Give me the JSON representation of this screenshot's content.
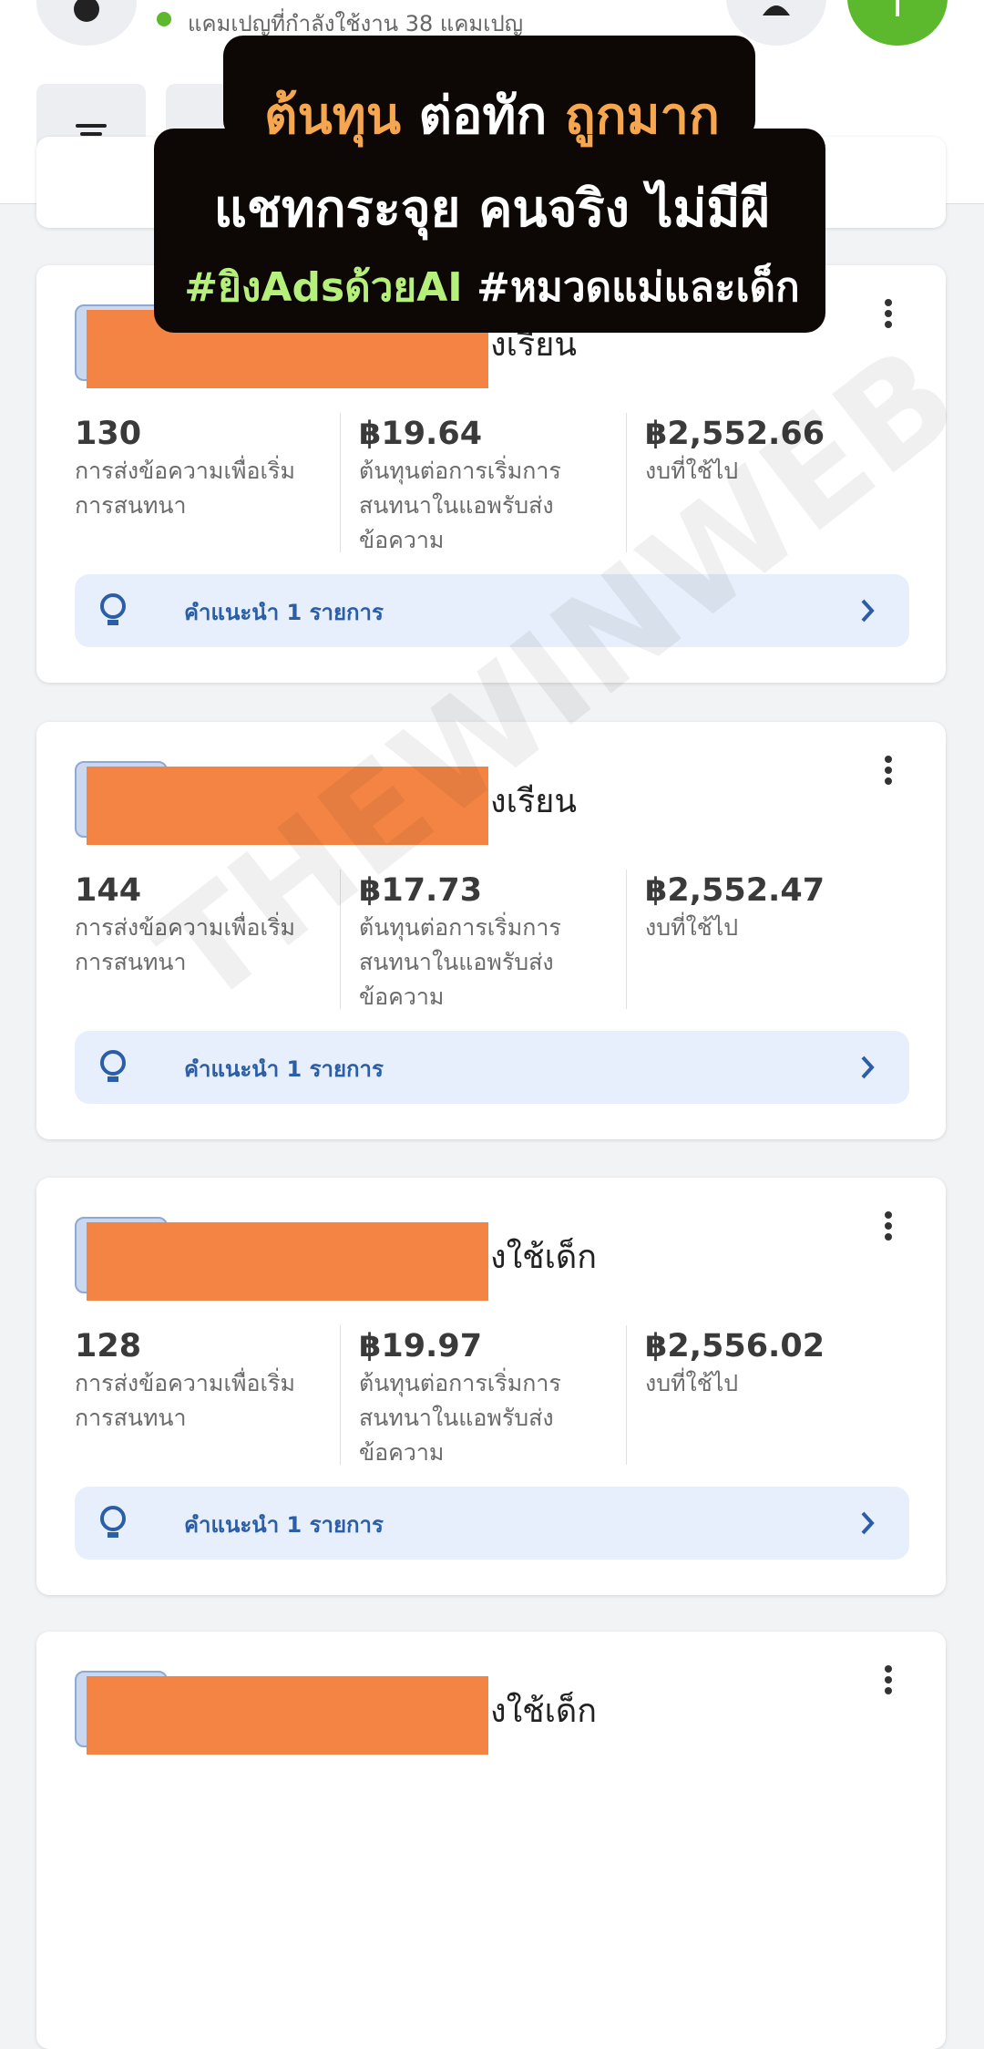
{
  "header": {
    "status": "แคมเปญที่กำลังใช้งาน 38 แคมเปญ"
  },
  "banner": {
    "line1": [
      "ต้นทุน",
      "ต่อทัก",
      "ถูกมาก"
    ],
    "line2": "แชทกระจุย คนจริง ไม่มีผี",
    "line3": [
      "#ยิงAdsด้วยAI",
      "#หมวดแม่และเด็ก"
    ]
  },
  "watermark": "THEWINWEB",
  "cards": [
    {
      "name": "งเรียน",
      "metrics": [
        {
          "value": "130",
          "label": "การส่งข้อความเพื่อเริ่มการสนทนา"
        },
        {
          "value": "฿19.64",
          "label": "ต้นทุนต่อการเริ่มการสนทนาในแอพรับส่งข้อความ"
        },
        {
          "value": "฿2,552.66",
          "label": "งบที่ใช้ไป"
        }
      ],
      "tip": "คำแนะนำ 1 รายการ"
    },
    {
      "name": "งเรียน",
      "metrics": [
        {
          "value": "144",
          "label": "การส่งข้อความเพื่อเริ่มการสนทนา"
        },
        {
          "value": "฿17.73",
          "label": "ต้นทุนต่อการเริ่มการสนทนาในแอพรับส่งข้อความ"
        },
        {
          "value": "฿2,552.47",
          "label": "งบที่ใช้ไป"
        }
      ],
      "tip": "คำแนะนำ 1 รายการ"
    },
    {
      "name": "งใช้เด็ก",
      "metrics": [
        {
          "value": "128",
          "label": "การส่งข้อความเพื่อเริ่มการสนทนา"
        },
        {
          "value": "฿19.97",
          "label": "ต้นทุนต่อการเริ่มการสนทนาในแอพรับส่งข้อความ"
        },
        {
          "value": "฿2,556.02",
          "label": "งบที่ใช้ไป"
        }
      ],
      "tip": "คำแนะนำ 1 รายการ"
    },
    {
      "name": "งใช้เด็ก"
    }
  ]
}
